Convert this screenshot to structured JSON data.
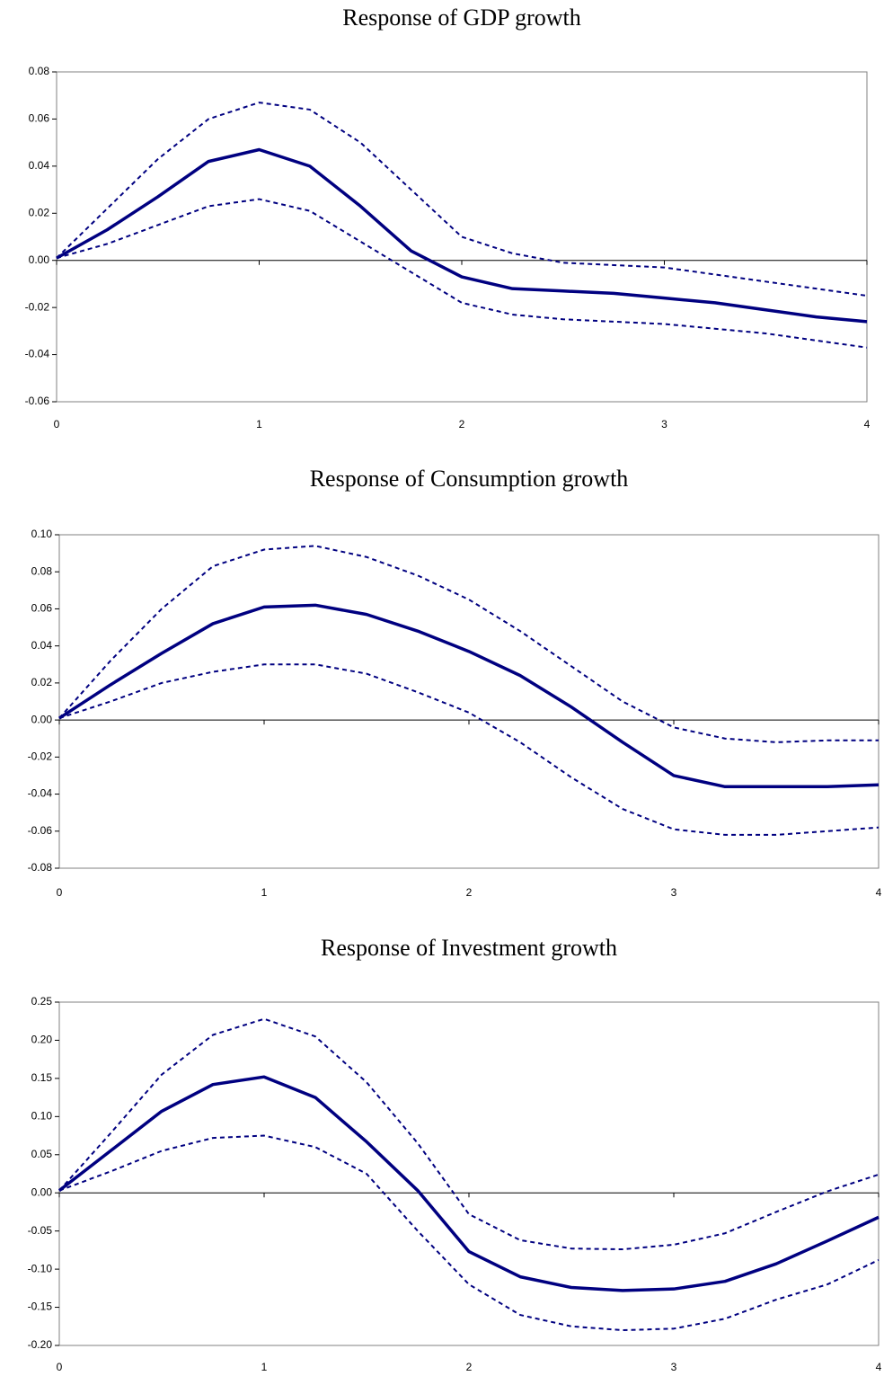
{
  "chart_data": [
    {
      "type": "line",
      "title": "Response of GDP growth",
      "x": [
        0,
        0.25,
        0.5,
        0.75,
        1,
        1.25,
        1.5,
        1.75,
        2,
        2.25,
        2.5,
        2.75,
        3,
        3.25,
        3.5,
        3.75,
        4
      ],
      "series": [
        {
          "color": "#000080",
          "style": "solid",
          "values": [
            0.001,
            0.013,
            0.027,
            0.042,
            0.047,
            0.04,
            0.023,
            0.004,
            -0.007,
            -0.012,
            -0.013,
            -0.014,
            -0.016,
            -0.018,
            -0.021,
            -0.024,
            -0.026
          ]
        },
        {
          "color": "#000080",
          "style": "dashed",
          "values": [
            0.001,
            0.022,
            0.043,
            0.06,
            0.067,
            0.064,
            0.05,
            0.03,
            0.01,
            0.003,
            -0.001,
            -0.002,
            -0.003,
            -0.006,
            -0.009,
            -0.012,
            -0.015
          ]
        },
        {
          "color": "#000080",
          "style": "dashed",
          "values": [
            0.001,
            0.007,
            0.015,
            0.023,
            0.026,
            0.021,
            0.008,
            -0.005,
            -0.018,
            -0.023,
            -0.025,
            -0.026,
            -0.027,
            -0.029,
            -0.031,
            -0.034,
            -0.037
          ]
        }
      ],
      "xlim": [
        0,
        4
      ],
      "xticks": [
        0,
        1,
        2,
        3,
        4
      ],
      "ylim": [
        -0.06,
        0.08
      ],
      "yticks": [
        {
          "value": -0.06,
          "label": "-0.06"
        },
        {
          "value": -0.04,
          "label": "-0.04"
        },
        {
          "value": -0.02,
          "label": "-0.02"
        },
        {
          "value": 0,
          "label": "0.00"
        },
        {
          "value": 0.02,
          "label": "0.02"
        },
        {
          "value": 0.04,
          "label": "0.04"
        },
        {
          "value": 0.06,
          "label": "0.06"
        },
        {
          "value": 0.08,
          "label": "0.08"
        }
      ]
    },
    {
      "type": "line",
      "title": "Response of Consumption growth",
      "x": [
        0,
        0.25,
        0.5,
        0.75,
        1,
        1.25,
        1.5,
        1.75,
        2,
        2.25,
        2.5,
        2.75,
        3,
        3.25,
        3.5,
        3.75,
        4
      ],
      "series": [
        {
          "color": "#000080",
          "style": "solid",
          "values": [
            0.001,
            0.019,
            0.036,
            0.052,
            0.061,
            0.062,
            0.057,
            0.048,
            0.037,
            0.024,
            0.007,
            -0.012,
            -0.03,
            -0.036,
            -0.036,
            -0.036,
            -0.035
          ]
        },
        {
          "color": "#000080",
          "style": "dashed",
          "values": [
            0.001,
            0.032,
            0.06,
            0.083,
            0.092,
            0.094,
            0.088,
            0.078,
            0.065,
            0.048,
            0.029,
            0.01,
            -0.004,
            -0.01,
            -0.012,
            -0.011,
            -0.011
          ]
        },
        {
          "color": "#000080",
          "style": "dashed",
          "values": [
            0.001,
            0.01,
            0.02,
            0.026,
            0.03,
            0.03,
            0.025,
            0.015,
            0.004,
            -0.012,
            -0.031,
            -0.048,
            -0.059,
            -0.062,
            -0.062,
            -0.06,
            -0.058
          ]
        }
      ],
      "xlim": [
        0,
        4
      ],
      "xticks": [
        0,
        1,
        2,
        3,
        4
      ],
      "ylim": [
        -0.08,
        0.1
      ],
      "yticks": [
        {
          "value": -0.08,
          "label": "-0.08"
        },
        {
          "value": -0.06,
          "label": "-0.06"
        },
        {
          "value": -0.04,
          "label": "-0.04"
        },
        {
          "value": -0.02,
          "label": "-0.02"
        },
        {
          "value": 0,
          "label": "0.00"
        },
        {
          "value": 0.02,
          "label": "0.02"
        },
        {
          "value": 0.04,
          "label": "0.04"
        },
        {
          "value": 0.06,
          "label": "0.06"
        },
        {
          "value": 0.08,
          "label": "0.08"
        },
        {
          "value": 0.1,
          "label": "0.10"
        }
      ]
    },
    {
      "type": "line",
      "title": "Response of Investment growth",
      "x": [
        0,
        0.25,
        0.5,
        0.75,
        1,
        1.25,
        1.5,
        1.75,
        2,
        2.25,
        2.5,
        2.75,
        3,
        3.25,
        3.5,
        3.75,
        4
      ],
      "series": [
        {
          "color": "#000080",
          "style": "solid",
          "values": [
            0.003,
            0.055,
            0.107,
            0.142,
            0.152,
            0.125,
            0.067,
            0.003,
            -0.077,
            -0.11,
            -0.124,
            -0.128,
            -0.126,
            -0.116,
            -0.093,
            -0.063,
            -0.032
          ]
        },
        {
          "color": "#000080",
          "style": "dashed",
          "values": [
            0.003,
            0.078,
            0.155,
            0.207,
            0.228,
            0.205,
            0.145,
            0.065,
            -0.028,
            -0.062,
            -0.073,
            -0.074,
            -0.068,
            -0.053,
            -0.025,
            0.002,
            0.024
          ]
        },
        {
          "color": "#000080",
          "style": "dashed",
          "values": [
            0.003,
            0.028,
            0.055,
            0.072,
            0.075,
            0.06,
            0.025,
            -0.05,
            -0.12,
            -0.16,
            -0.175,
            -0.18,
            -0.178,
            -0.165,
            -0.14,
            -0.12,
            -0.088
          ]
        }
      ],
      "xlim": [
        0,
        4
      ],
      "xticks": [
        0,
        1,
        2,
        3,
        4
      ],
      "ylim": [
        -0.2,
        0.25
      ],
      "yticks": [
        {
          "value": -0.2,
          "label": "-0.20"
        },
        {
          "value": -0.15,
          "label": "-0.15"
        },
        {
          "value": -0.1,
          "label": "-0.10"
        },
        {
          "value": -0.05,
          "label": "-0.05"
        },
        {
          "value": 0,
          "label": "0.00"
        },
        {
          "value": 0.05,
          "label": "0.05"
        },
        {
          "value": 0.1,
          "label": "0.10"
        },
        {
          "value": 0.15,
          "label": "0.15"
        },
        {
          "value": 0.2,
          "label": "0.20"
        },
        {
          "value": 0.25,
          "label": "0.25"
        }
      ]
    }
  ]
}
